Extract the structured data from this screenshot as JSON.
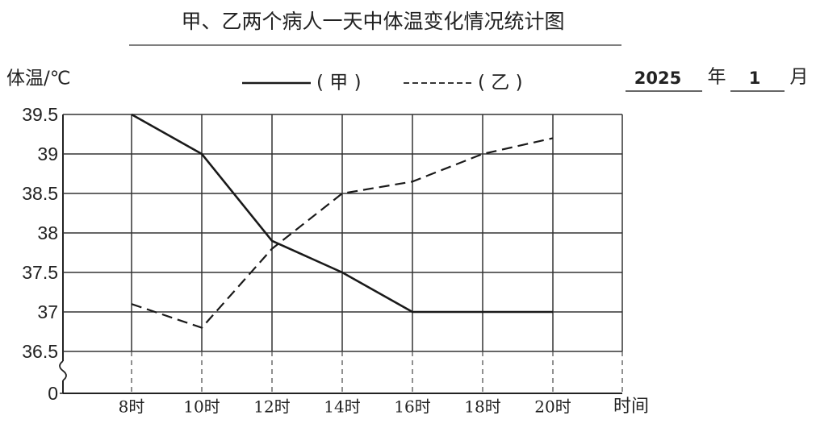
{
  "chart_data": {
    "type": "line",
    "title": "甲、乙两个病人一天中体温变化情况统计图",
    "y_label": "体温/℃",
    "x_label": "时间",
    "categories": [
      "8时",
      "10时",
      "12时",
      "14时",
      "16时",
      "18时",
      "20时"
    ],
    "series": [
      {
        "name": "( 甲 )",
        "color": "#1a1a1a",
        "line_style": "solid",
        "values": [
          39.5,
          39,
          37.9,
          37.5,
          37,
          37,
          37
        ]
      },
      {
        "name": "( 乙 )",
        "color": "#1a1a1a",
        "line_style": "dashed",
        "values": [
          37.1,
          36.8,
          37.8,
          38.5,
          38.65,
          39,
          39.2
        ]
      }
    ],
    "ylim": [
      36.5,
      39.5
    ],
    "yticks": [
      0,
      36.5,
      37,
      37.5,
      38,
      38.5,
      39,
      39.5
    ],
    "axis_break": true,
    "grid": true,
    "date": {
      "year": "2025",
      "year_unit": "年",
      "month": "1",
      "month_unit": "月",
      "color": "#e0201b"
    }
  }
}
